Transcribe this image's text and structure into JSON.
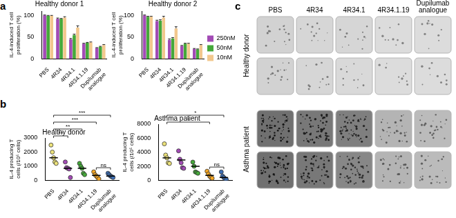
{
  "chart_data": [
    {
      "panel": "a",
      "type": "bar",
      "title": "Healthy donor 1",
      "y_label": "IL-4-induced T cell proliferation (%)",
      "categories": [
        "PBS",
        "4R34",
        "4R34.1",
        "4R34.1.19",
        "Dupilumab analogue"
      ],
      "series": [
        {
          "name": "250nM",
          "color": "#a24bb5",
          "values": [
            100,
            92,
            45,
            35,
            25
          ],
          "errors": [
            1,
            2,
            2,
            1,
            1
          ]
        },
        {
          "name": "50nM",
          "color": "#45a83a",
          "values": [
            99,
            92,
            55,
            37,
            28
          ],
          "errors": [
            1,
            1,
            2,
            1,
            1
          ]
        },
        {
          "name": "10nM",
          "color": "#f2c88e",
          "values": [
            99,
            95,
            72,
            38,
            32
          ],
          "errors": [
            1,
            2,
            4,
            1,
            1
          ]
        }
      ],
      "ylim": [
        0,
        110
      ],
      "yticks": [
        0,
        50,
        100
      ],
      "grid": false
    },
    {
      "panel": "a",
      "type": "bar",
      "title": "Healthy donor 2",
      "y_label": "IL-4-induced T cell proliferation (%)",
      "categories": [
        "PBS",
        "4R34",
        "4R34.1",
        "4R34.1.19",
        "Dupilumab analogue"
      ],
      "series": [
        {
          "name": "250nM",
          "color": "#a24bb5",
          "values": [
            100,
            87,
            44,
            30,
            23
          ],
          "errors": [
            1,
            2,
            2,
            1,
            1
          ]
        },
        {
          "name": "50nM",
          "color": "#45a83a",
          "values": [
            97,
            88,
            47,
            35,
            22
          ],
          "errors": [
            1,
            2,
            2,
            1,
            1
          ]
        },
        {
          "name": "10nM",
          "color": "#f2c88e",
          "values": [
            97,
            95,
            70,
            35,
            32
          ],
          "errors": [
            1,
            3,
            4,
            1,
            1
          ]
        }
      ],
      "ylim": [
        0,
        110
      ],
      "yticks": [
        0,
        50,
        100
      ],
      "grid": false,
      "legend": "right"
    },
    {
      "panel": "b",
      "type": "dot",
      "title": "Healthy donor",
      "y_label": "IL-4 producing T cells (/10⁵ cells)",
      "categories": [
        "PBS",
        "4R34",
        "4R34.1",
        "4R34.1.19",
        "Dupilumab analogue"
      ],
      "colors": [
        "#ece27a",
        "#a24bb5",
        "#45a83a",
        "#f5a623",
        "#3d6fb6"
      ],
      "values": [
        [
          2500,
          2000,
          1600,
          1300,
          1200
        ],
        [
          1300,
          900,
          850,
          800,
          200
        ],
        [
          1200,
          1000,
          850,
          500,
          400
        ],
        [
          600,
          400,
          300,
          200,
          100
        ],
        [
          500,
          400,
          300,
          250,
          200
        ]
      ],
      "medians": [
        1600,
        850,
        850,
        350,
        300
      ],
      "ylim": [
        0,
        3000
      ],
      "yticks": [
        0,
        1000,
        2000,
        3000
      ],
      "grid": false,
      "comparisons": [
        {
          "from": "PBS",
          "to": "4R34",
          "label": "**"
        },
        {
          "from": "PBS",
          "to": "4R34.1",
          "label": "**"
        },
        {
          "from": "PBS",
          "to": "4R34.1.19",
          "label": "***"
        },
        {
          "from": "PBS",
          "to": "Dupilumab analogue",
          "label": "***"
        },
        {
          "from": "4R34.1.19",
          "to": "Dupilumab analogue",
          "label": "ns"
        }
      ]
    },
    {
      "panel": "b",
      "type": "dot",
      "title": "Asthma patient",
      "y_label": "IL-4 producing T cells (/10⁵ cells)",
      "categories": [
        "PBS",
        "4R34",
        "4R34.1",
        "4R34.1.19",
        "Dupilumab analogue"
      ],
      "colors": [
        "#ece27a",
        "#a24bb5",
        "#45a83a",
        "#f5a623",
        "#3d6fb6"
      ],
      "values": [
        [
          5200,
          3600,
          3200,
          2500,
          2400
        ],
        [
          4200,
          3000,
          2500,
          1800,
          1700
        ],
        [
          2600,
          2000,
          1200,
          1100,
          1000
        ],
        [
          1300,
          900,
          600,
          400,
          300
        ],
        [
          1200,
          600,
          400,
          200,
          100
        ]
      ],
      "medians": [
        3200,
        2900,
        2000,
        700,
        400
      ],
      "ylim": [
        0,
        8000
      ],
      "yticks": [
        0,
        2000,
        4000,
        6000,
        8000
      ],
      "grid": false,
      "comparisons": [
        {
          "from": "PBS",
          "to": "4R34.1.19",
          "label": "*"
        },
        {
          "from": "PBS",
          "to": "Dupilumab analogue",
          "label": "*"
        },
        {
          "from": "4R34.1.19",
          "to": "Dupilumab analogue",
          "label": "ns"
        }
      ]
    }
  ],
  "well_images": {
    "panel": "c",
    "columns": [
      "PBS",
      "4R34",
      "4R34.1",
      "4R34.1.19",
      "Dupilumab analogue"
    ],
    "row_groups": [
      {
        "label": "Healthy donor",
        "intensity": [
          [
            0.15,
            0.12,
            0.12,
            0.08,
            0.08
          ],
          [
            0.15,
            0.12,
            0.1,
            0.08,
            0.08
          ]
        ]
      },
      {
        "label": "Asthma patient",
        "intensity": [
          [
            0.8,
            0.75,
            0.7,
            0.35,
            0.3
          ],
          [
            0.8,
            0.75,
            0.65,
            0.35,
            0.3
          ]
        ]
      }
    ]
  }
}
